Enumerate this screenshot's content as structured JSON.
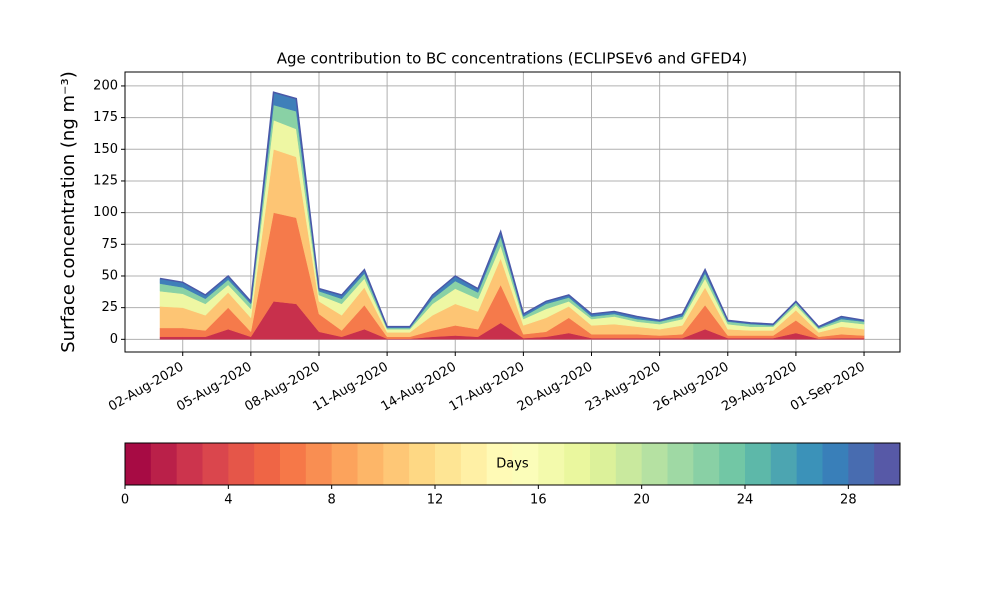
{
  "chart_data": {
    "type": "stacked_area",
    "title": "Age contribution to BC concentrations (ECLIPSEv6 and GFED4)",
    "ylabel": "Surface concentration (ng m⁻³)",
    "x": [
      "2020-08-01",
      "2020-08-02",
      "2020-08-03",
      "2020-08-04",
      "2020-08-05",
      "2020-08-06",
      "2020-08-07",
      "2020-08-08",
      "2020-08-09",
      "2020-08-10",
      "2020-08-11",
      "2020-08-12",
      "2020-08-13",
      "2020-08-14",
      "2020-08-15",
      "2020-08-16",
      "2020-08-17",
      "2020-08-18",
      "2020-08-19",
      "2020-08-20",
      "2020-08-21",
      "2020-08-22",
      "2020-08-23",
      "2020-08-24",
      "2020-08-25",
      "2020-08-26",
      "2020-08-27",
      "2020-08-28",
      "2020-08-29",
      "2020-08-30",
      "2020-08-31",
      "2020-09-01"
    ],
    "series": [
      {
        "color": "#c8304c",
        "values": [
          2,
          2,
          2,
          8,
          2,
          30,
          28,
          6,
          2,
          8,
          0.5,
          0.5,
          2,
          3,
          2,
          13,
          1,
          2,
          5,
          1,
          1,
          1,
          1,
          1,
          8,
          1,
          1,
          1,
          5,
          0.5,
          1,
          1
        ]
      },
      {
        "color": "#f57a4b",
        "values": [
          7,
          7,
          5,
          17,
          4,
          70,
          68,
          14,
          5,
          19,
          1.5,
          1.5,
          5,
          8,
          6,
          30,
          3,
          4,
          12,
          3,
          3,
          3,
          2,
          3,
          19,
          2,
          2,
          2,
          10,
          1.5,
          3,
          2
        ]
      },
      {
        "color": "#fdc574",
        "values": [
          17,
          16,
          12,
          12,
          11,
          50,
          48,
          10,
          12,
          14,
          3.5,
          3.5,
          12,
          17,
          14,
          21,
          7,
          11,
          9,
          7,
          8,
          6,
          5,
          7,
          14,
          5,
          4,
          4,
          8,
          3.5,
          6,
          5
        ]
      },
      {
        "color": "#eef7a3",
        "values": [
          12,
          11,
          9,
          6,
          7,
          23,
          22,
          5,
          9,
          7,
          2.5,
          2.5,
          9,
          12,
          10,
          10,
          5,
          7,
          4,
          5,
          6,
          4,
          4,
          5,
          7,
          4,
          3,
          3,
          4,
          2.5,
          4,
          4
        ]
      },
      {
        "color": "#89d1a5",
        "values": [
          6,
          5,
          4,
          4,
          4,
          12,
          14,
          3,
          4,
          4,
          1,
          1,
          4,
          6,
          5,
          7,
          2,
          4,
          3,
          2,
          2,
          2,
          2,
          2,
          4,
          2,
          2,
          1,
          2,
          1,
          2,
          2
        ]
      },
      {
        "color": "#3f7fb9",
        "values": [
          4,
          4,
          3,
          3,
          2,
          10,
          10,
          2,
          3,
          3,
          1,
          1,
          3,
          4,
          3,
          4,
          2,
          2,
          2,
          2,
          2,
          2,
          1,
          2,
          3,
          1,
          1,
          1,
          1,
          1,
          2,
          1
        ]
      }
    ],
    "xlim": [
      "2020-07-30T11:00",
      "2020-09-02T14:00"
    ],
    "xticks": [
      {
        "value": "2020-08-02",
        "label": "02-Aug-2020"
      },
      {
        "value": "2020-08-05",
        "label": "05-Aug-2020"
      },
      {
        "value": "2020-08-08",
        "label": "08-Aug-2020"
      },
      {
        "value": "2020-08-11",
        "label": "11-Aug-2020"
      },
      {
        "value": "2020-08-14",
        "label": "14-Aug-2020"
      },
      {
        "value": "2020-08-17",
        "label": "17-Aug-2020"
      },
      {
        "value": "2020-08-20",
        "label": "20-Aug-2020"
      },
      {
        "value": "2020-08-23",
        "label": "23-Aug-2020"
      },
      {
        "value": "2020-08-26",
        "label": "26-Aug-2020"
      },
      {
        "value": "2020-08-29",
        "label": "29-Aug-2020"
      },
      {
        "value": "2020-09-01",
        "label": "01-Sep-2020"
      }
    ],
    "ylim": [
      -10,
      211
    ],
    "yticks": [
      0,
      25,
      50,
      75,
      100,
      125,
      150,
      175,
      200
    ],
    "grid": true,
    "edge_color": "#4a58a8",
    "colorbar": {
      "label": "Days",
      "clim": [
        0,
        30
      ],
      "levels": 30,
      "ticks": [
        0,
        4,
        8,
        12,
        16,
        20,
        24,
        28
      ],
      "cmap": [
        "#9e0142",
        "#d53e4f",
        "#f46d43",
        "#fdae61",
        "#fee08b",
        "#ffffbf",
        "#e6f598",
        "#abdda4",
        "#66c2a5",
        "#3288bd",
        "#5e4fa2"
      ]
    }
  }
}
